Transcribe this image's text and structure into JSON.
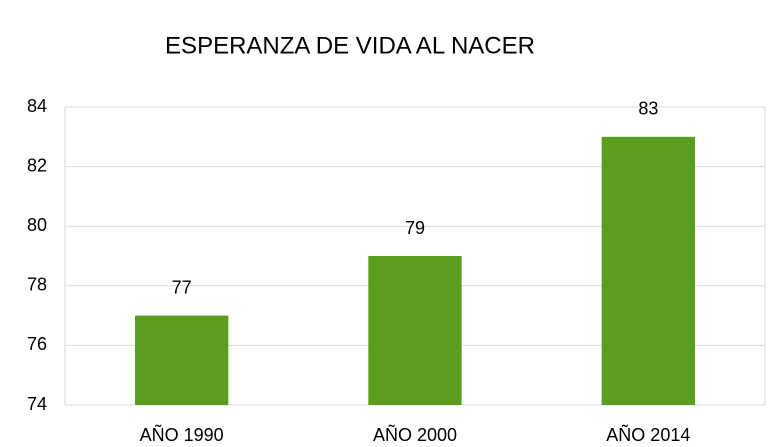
{
  "chart_data": {
    "type": "bar",
    "title": "ESPERANZA DE VIDA AL NACER",
    "categories": [
      "AÑO 1990",
      "AÑO 2000",
      "AÑO 2014"
    ],
    "values": [
      77,
      79,
      83
    ],
    "color": "#5b9e1f",
    "ylim": [
      74,
      84
    ],
    "yticks": [
      74,
      76,
      78,
      80,
      82,
      84
    ],
    "grid": true
  }
}
